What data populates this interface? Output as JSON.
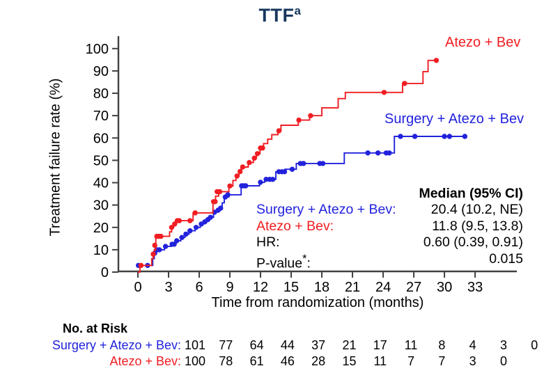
{
  "title": {
    "text": "TTF",
    "sup": "a",
    "color": "#17375e"
  },
  "colors": {
    "red": "#f01d22",
    "blue": "#2222dd",
    "axis": "#404040",
    "text": "#000000"
  },
  "chart_data": {
    "type": "line",
    "subtype": "kaplan-meier-step",
    "title": "TTF",
    "xlabel": "Time from randomization (months)",
    "ylabel": "Treatment failure rate (%)",
    "xlim": [
      0,
      33
    ],
    "ylim": [
      0,
      100
    ],
    "x_ticks": [
      0,
      3,
      6,
      9,
      12,
      15,
      18,
      21,
      24,
      27,
      30,
      33
    ],
    "y_ticks": [
      0,
      10,
      20,
      30,
      40,
      50,
      60,
      70,
      80,
      90,
      100
    ],
    "grid": false,
    "series": [
      {
        "name": "Atezo + Bev",
        "color": "#f01d22",
        "steps": [
          [
            0,
            0
          ],
          [
            0.2,
            3
          ],
          [
            1.35,
            6
          ],
          [
            1.5,
            8
          ],
          [
            1.6,
            10
          ],
          [
            1.75,
            16
          ],
          [
            3.1,
            18
          ],
          [
            3.3,
            20
          ],
          [
            3.5,
            21.5
          ],
          [
            3.7,
            23
          ],
          [
            5.4,
            26.5
          ],
          [
            7.35,
            31.5
          ],
          [
            7.6,
            34
          ],
          [
            7.9,
            36
          ],
          [
            8.9,
            38.5
          ],
          [
            9.3,
            41
          ],
          [
            9.6,
            43
          ],
          [
            9.9,
            45
          ],
          [
            10.1,
            47
          ],
          [
            10.8,
            49
          ],
          [
            11.3,
            51
          ],
          [
            11.6,
            53
          ],
          [
            11.95,
            55.5
          ],
          [
            12.3,
            57.5
          ],
          [
            12.7,
            59.5
          ],
          [
            13.1,
            61.5
          ],
          [
            13.7,
            63.2
          ],
          [
            14.0,
            65.7
          ],
          [
            15.7,
            68
          ],
          [
            16.8,
            70
          ],
          [
            18.0,
            73.5
          ],
          [
            19.6,
            77.6
          ],
          [
            20.3,
            80.4
          ],
          [
            25.9,
            84.4
          ],
          [
            27.9,
            89.7
          ],
          [
            28.4,
            94.7
          ],
          [
            29.2,
            94.7
          ]
        ],
        "censor_marks": [
          [
            0.3,
            3
          ],
          [
            1.5,
            8
          ],
          [
            1.65,
            12
          ],
          [
            1.85,
            16
          ],
          [
            2.05,
            16
          ],
          [
            2.25,
            16
          ],
          [
            3.3,
            20
          ],
          [
            3.6,
            21.5
          ],
          [
            3.85,
            23
          ],
          [
            4.05,
            23
          ],
          [
            5.1,
            23
          ],
          [
            5.6,
            26.5
          ],
          [
            7.4,
            31.5
          ],
          [
            7.55,
            31.5
          ],
          [
            7.75,
            36
          ],
          [
            8.0,
            36
          ],
          [
            9.0,
            38.5
          ],
          [
            9.7,
            43
          ],
          [
            10.0,
            45
          ],
          [
            10.25,
            47
          ],
          [
            10.9,
            49
          ],
          [
            11.4,
            51
          ],
          [
            11.7,
            53
          ],
          [
            12.0,
            55.5
          ],
          [
            12.2,
            55.5
          ],
          [
            13.8,
            63.2
          ],
          [
            15.75,
            68
          ],
          [
            16.9,
            70
          ],
          [
            24.1,
            80.4
          ],
          [
            26.1,
            84.4
          ],
          [
            29.2,
            94.7
          ]
        ]
      },
      {
        "name": "Surgery + Atezo + Bev",
        "color": "#2222dd",
        "steps": [
          [
            0,
            3
          ],
          [
            1.45,
            6
          ],
          [
            1.6,
            8.5
          ],
          [
            1.75,
            10
          ],
          [
            2.6,
            11.5
          ],
          [
            3.25,
            12.5
          ],
          [
            3.7,
            14
          ],
          [
            4.2,
            15.5
          ],
          [
            4.6,
            17
          ],
          [
            5.0,
            18.5
          ],
          [
            5.6,
            20
          ],
          [
            6.1,
            21.5
          ],
          [
            6.45,
            22.5
          ],
          [
            6.75,
            23.5
          ],
          [
            7.05,
            24.5
          ],
          [
            7.4,
            26.8
          ],
          [
            7.75,
            27.7
          ],
          [
            8.05,
            28.6
          ],
          [
            8.25,
            31
          ],
          [
            8.45,
            33.6
          ],
          [
            8.9,
            34.6
          ],
          [
            10.1,
            38.6
          ],
          [
            11.9,
            40.2
          ],
          [
            12.4,
            41.5
          ],
          [
            13.5,
            44.9
          ],
          [
            14.4,
            46
          ],
          [
            15.5,
            48.6
          ],
          [
            20.2,
            53.3
          ],
          [
            25.1,
            60.7
          ],
          [
            32.1,
            60.7
          ]
        ],
        "censor_marks": [
          [
            0.05,
            3
          ],
          [
            0.95,
            3
          ],
          [
            1.65,
            8.5
          ],
          [
            1.85,
            10
          ],
          [
            2.1,
            10
          ],
          [
            2.7,
            11.5
          ],
          [
            3.35,
            12.5
          ],
          [
            3.55,
            12.5
          ],
          [
            3.8,
            14
          ],
          [
            4.3,
            15.5
          ],
          [
            4.7,
            17
          ],
          [
            5.1,
            18.5
          ],
          [
            5.7,
            20
          ],
          [
            6.2,
            21.5
          ],
          [
            6.55,
            22.5
          ],
          [
            6.85,
            23.5
          ],
          [
            7.1,
            24.5
          ],
          [
            7.5,
            26.8
          ],
          [
            7.85,
            27.7
          ],
          [
            8.1,
            28.6
          ],
          [
            8.55,
            33.6
          ],
          [
            8.8,
            34.6
          ],
          [
            10.15,
            38.6
          ],
          [
            10.35,
            38.6
          ],
          [
            10.55,
            38.6
          ],
          [
            12.0,
            40.2
          ],
          [
            12.55,
            41.5
          ],
          [
            12.9,
            41.5
          ],
          [
            13.2,
            41.5
          ],
          [
            13.8,
            44.9
          ],
          [
            14.1,
            44.9
          ],
          [
            14.35,
            44.9
          ],
          [
            15.1,
            46
          ],
          [
            15.9,
            48.6
          ],
          [
            16.2,
            48.6
          ],
          [
            17.8,
            48.6
          ],
          [
            18.1,
            48.6
          ],
          [
            22.5,
            53.3
          ],
          [
            23.5,
            53.3
          ],
          [
            24.3,
            53.3
          ],
          [
            24.6,
            53.3
          ],
          [
            25.7,
            60.7
          ],
          [
            27.1,
            60.7
          ],
          [
            30.0,
            60.7
          ],
          [
            30.5,
            60.7
          ],
          [
            32.0,
            60.7
          ]
        ]
      }
    ],
    "legend_position": "inline-right"
  },
  "stats": {
    "header": "Median (95% CI)",
    "rows": [
      {
        "label": "Surgery + Atezo + Bev:",
        "value": "20.4 (10.2, NE)",
        "color": "#2222dd"
      },
      {
        "label": "Atezo + Bev:",
        "value": "11.8 (9.5, 13.8)",
        "color": "#f01d22"
      },
      {
        "label": "HR:",
        "value": "0.60 (0.39, 0.91)",
        "color": "#000000"
      },
      {
        "label_pre": "P-value",
        "label_sup": "*",
        "label_post": ":",
        "value": "0.015",
        "color": "#000000"
      }
    ]
  },
  "risk_table": {
    "heading": "No. at Risk",
    "rows": [
      {
        "label": "Surgery + Atezo + Bev:",
        "color": "#2222dd",
        "counts": [
          "101",
          "77",
          "64",
          "44",
          "37",
          "21",
          "17",
          "11",
          "8",
          "4",
          "3",
          "0"
        ]
      },
      {
        "label": "Atezo + Bev:",
        "color": "#f01d22",
        "counts": [
          "100",
          "78",
          "61",
          "46",
          "28",
          "15",
          "11",
          "7",
          "7",
          "3",
          "0"
        ]
      }
    ]
  }
}
